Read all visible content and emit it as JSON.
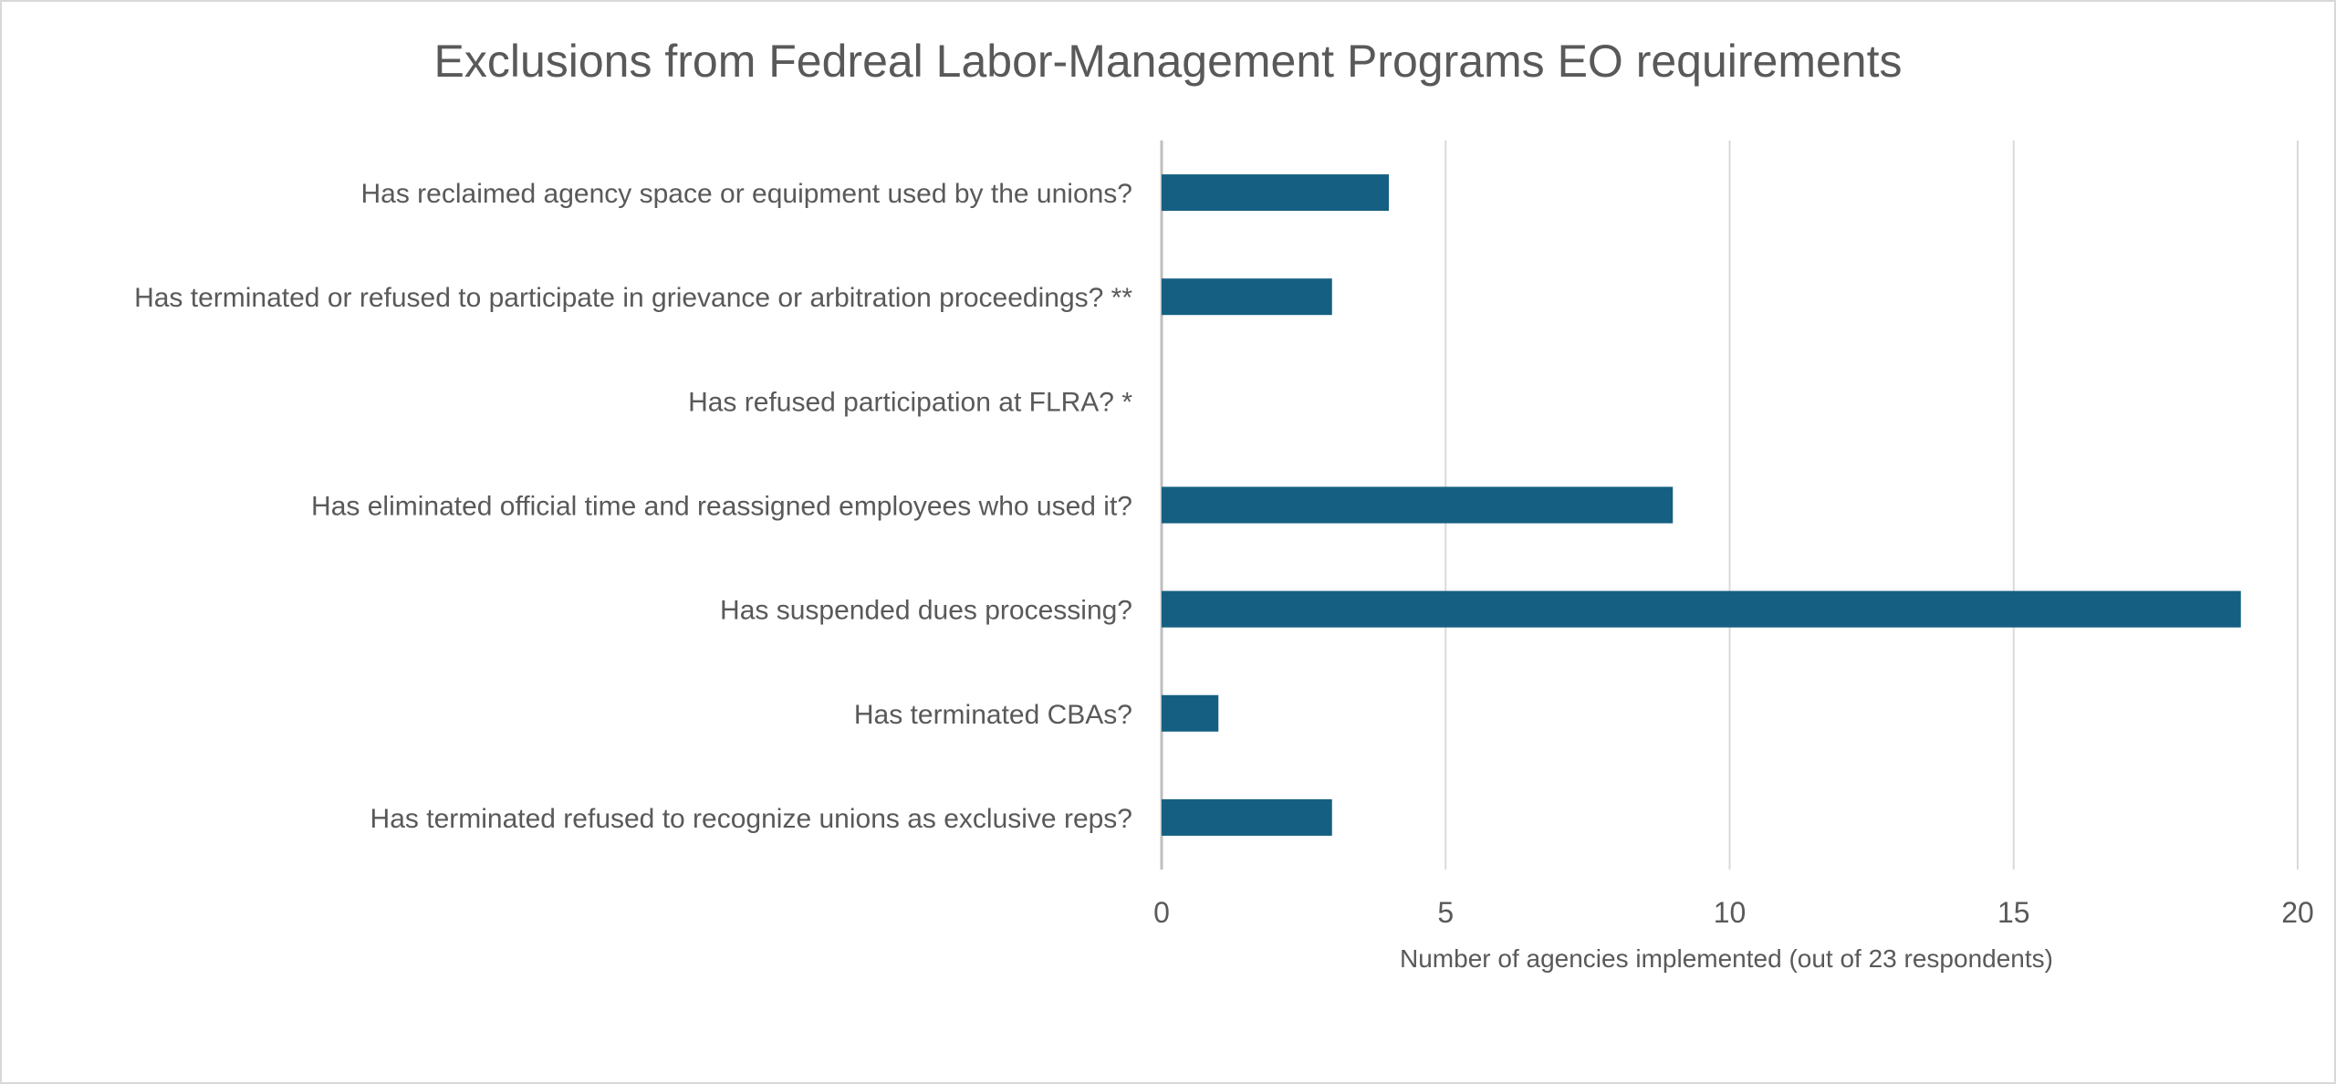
{
  "chart_data": {
    "type": "bar",
    "orientation": "horizontal",
    "title": "Exclusions from Fedreal Labor-Management Programs EO requirements",
    "xlabel": "Number of agencies implemented (out of 23 respondents)",
    "ylabel": "",
    "categories": [
      "Has reclaimed agency space or equipment used by the unions?",
      "Has terminated or refused to participate in grievance or arbitration proceedings? **",
      "Has refused participation at FLRA? *",
      "Has eliminated official time and reassigned employees who used it?",
      "Has suspended dues processing?",
      "Has terminated CBAs?",
      "Has terminated refused to recognize unions as exclusive reps?"
    ],
    "values": [
      4,
      3,
      0,
      9,
      19,
      1,
      3
    ],
    "xlim": [
      0,
      20
    ],
    "xticks": [
      "0",
      "5",
      "10",
      "15",
      "20"
    ],
    "grid": true,
    "legend": "none",
    "bar_color": "#156082",
    "gridline_color": "#d9d9d9",
    "text_color": "#595959"
  }
}
